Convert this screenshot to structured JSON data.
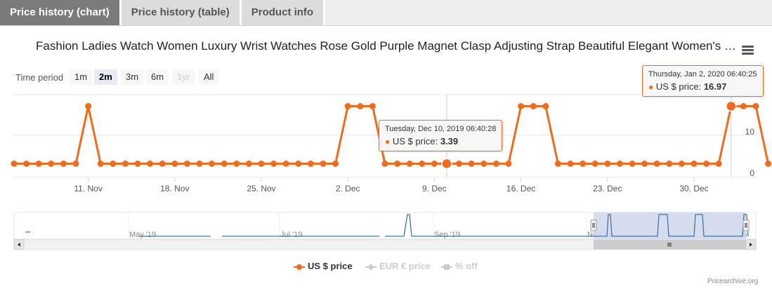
{
  "tabs": [
    "Price history (chart)",
    "Price history (table)",
    "Product info"
  ],
  "title": "Fashion Ladies Watch Women Luxury Wrist Watches Rose Gold Purple Magnet Clasp Adjusting Strap Beautiful Elegant Women's …",
  "range_selector": {
    "label": "Time period",
    "buttons": [
      "1m",
      "2m",
      "3m",
      "6m",
      "1yr",
      "All"
    ],
    "selected": "2m",
    "disabled": [
      "1yr"
    ]
  },
  "colors": {
    "series": "#ef6c1f",
    "navigator": "#4572a7",
    "navigator_mask": "#ccd6eb",
    "grid": "#e6e6e6"
  },
  "chart_data": {
    "type": "line",
    "x_ticks": [
      "11. Nov",
      "18. Nov",
      "25. Nov",
      "2. Dec",
      "9. Dec",
      "16. Dec",
      "23. Dec",
      "30. Dec"
    ],
    "y_ticks": [
      "10",
      "0"
    ],
    "grid": true,
    "series": [
      {
        "name": "US $ price",
        "x": [
          "Nov 5",
          "Nov 6",
          "Nov 7",
          "Nov 8",
          "Nov 9",
          "Nov 10",
          "Nov 11",
          "Nov 12",
          "Nov 13",
          "Nov 14",
          "Nov 15",
          "Nov 16",
          "Nov 17",
          "Nov 18",
          "Nov 19",
          "Nov 20",
          "Nov 21",
          "Nov 22",
          "Nov 23",
          "Nov 24",
          "Nov 25",
          "Nov 26",
          "Nov 27",
          "Nov 28",
          "Nov 29",
          "Nov 30",
          "Dec 1",
          "Dec 2",
          "Dec 3",
          "Dec 4",
          "Dec 5",
          "Dec 6",
          "Dec 7",
          "Dec 8",
          "Dec 9",
          "Dec 10",
          "Dec 11",
          "Dec 12",
          "Dec 13",
          "Dec 14",
          "Dec 15",
          "Dec 16",
          "Dec 17",
          "Dec 18",
          "Dec 19",
          "Dec 20",
          "Dec 21",
          "Dec 22",
          "Dec 23",
          "Dec 24",
          "Dec 25",
          "Dec 26",
          "Dec 27",
          "Dec 28",
          "Dec 29",
          "Dec 30",
          "Dec 31",
          "Jan 1",
          "Jan 2",
          "Jan 3",
          "Jan 4",
          "Jan 5"
        ],
        "values": [
          3.39,
          3.39,
          3.39,
          3.39,
          3.39,
          3.39,
          16.97,
          3.39,
          3.39,
          3.39,
          3.39,
          3.39,
          3.39,
          3.39,
          3.39,
          3.39,
          3.39,
          3.39,
          3.39,
          3.39,
          3.39,
          3.39,
          3.39,
          3.39,
          3.39,
          3.39,
          3.39,
          16.97,
          16.97,
          16.97,
          3.39,
          3.39,
          3.39,
          3.39,
          3.39,
          3.39,
          3.39,
          3.39,
          3.39,
          3.39,
          3.39,
          16.97,
          16.97,
          16.97,
          3.39,
          3.39,
          3.39,
          3.39,
          3.39,
          3.39,
          3.39,
          3.39,
          3.39,
          3.39,
          3.39,
          3.39,
          3.39,
          3.39,
          16.97,
          16.97,
          16.97,
          3.39
        ]
      }
    ],
    "tooltips": [
      {
        "date": "Tuesday, Dec 10, 2019 06:40:28",
        "series": "US $ price",
        "value": "3.39",
        "x": "Dec 10"
      },
      {
        "date": "Thursday, Jan 2, 2020 06:40:25",
        "series": "US $ price",
        "value": "16.97",
        "x": "Jan 2"
      }
    ],
    "navigator": {
      "ticks": [
        "May '19",
        "Jul '19",
        "Sep '19",
        "Nov '19",
        "Ja"
      ],
      "spike_months": [
        "Aug '19",
        "Nov '19",
        "Dec '19",
        "Jan '20"
      ]
    }
  },
  "legend": [
    {
      "label": "US $ price",
      "active": true
    },
    {
      "label": "EUR € price",
      "active": false
    },
    {
      "label": "% off",
      "active": false
    }
  ],
  "credit": "Pricearchive.org"
}
